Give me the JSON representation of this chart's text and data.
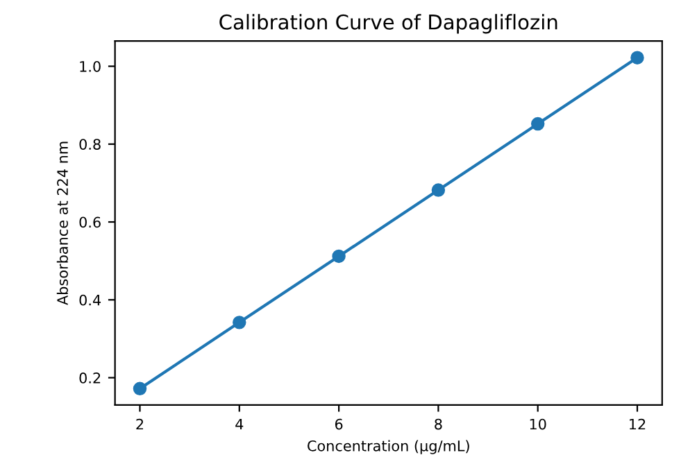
{
  "chart_data": {
    "type": "line",
    "title": "Calibration Curve of Dapagliflozin",
    "xlabel": "Concentration (µg/mL)",
    "ylabel": "Absorbance at 224 nm",
    "x": [
      2,
      4,
      6,
      8,
      10,
      12
    ],
    "series": [
      {
        "color": "#1f77b4",
        "values": [
          0.172,
          0.342,
          0.512,
          0.682,
          0.852,
          1.022
        ]
      }
    ],
    "marker": "circle",
    "line_style": "solid",
    "grid": false,
    "legend": false,
    "xlim": [
      1.5,
      12.5
    ],
    "xticks": [
      2,
      4,
      6,
      8,
      10,
      12
    ],
    "ylim": [
      0.13,
      1.065
    ],
    "yticks": [
      0.2,
      0.4,
      0.6,
      0.8,
      {
        "value": 1,
        "label": "1.0"
      }
    ]
  }
}
